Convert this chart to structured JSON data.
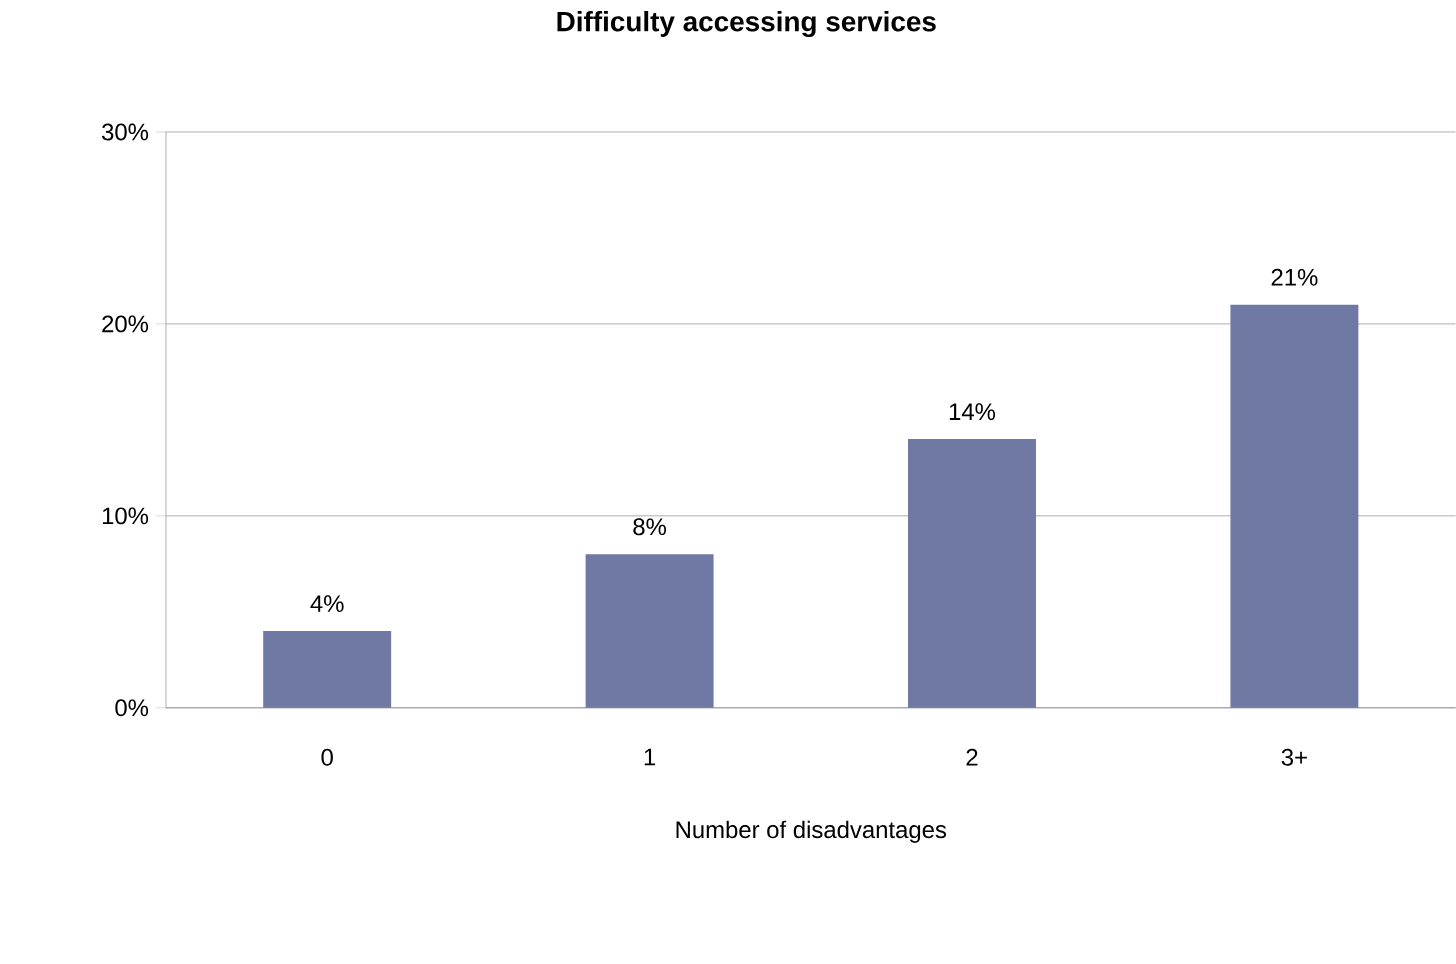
{
  "chart_data": {
    "type": "bar",
    "title": "**Difficulty accessing services**",
    "xlabel": "Number of disadvantages",
    "categories": [
      "0",
      "1",
      "2",
      "3+"
    ],
    "values": [
      4,
      8,
      14,
      21
    ],
    "value_labels": [
      "4%",
      "8%",
      "14%",
      "21%"
    ],
    "color": "#7079a3",
    "ylim": [
      0,
      30
    ],
    "yticks": [
      {
        "value": 0,
        "label": "0%"
      },
      {
        "value": 10,
        "label": "10%"
      },
      {
        "value": 20,
        "label": "20%"
      },
      {
        "value": 30,
        "label": "30%"
      }
    ],
    "grid": "y"
  }
}
